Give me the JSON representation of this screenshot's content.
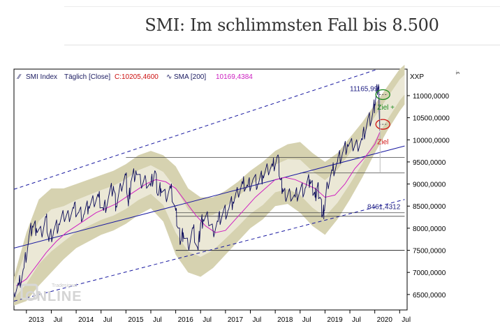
{
  "page": {
    "headline": "SMI: Im schlimmsten Fall bis 8.500"
  },
  "colors": {
    "price": "#0a0a5a",
    "sma": "#d020c0",
    "band": "#d6d2b0",
    "channel": "#1818a0",
    "level": "#444444",
    "target_plus": "#1c8a1c",
    "target": "#d01010",
    "background": "#ffffff"
  },
  "chart_data": {
    "type": "line",
    "legend_text": {
      "symbol": "SMI Index",
      "period": "Täglich [Close]",
      "close_label": "C:10205,4600",
      "sma_label": "SMA [200]",
      "sma_value": "10169,4384"
    },
    "axis_unit": "XXP",
    "x_ticks": [
      "2013",
      "Jul",
      "2014",
      "Jul",
      "2015",
      "Jul",
      "2016",
      "Jul",
      "2017",
      "Jul",
      "2018",
      "Jul",
      "2019",
      "Jul",
      "2020",
      "Jul"
    ],
    "y_ticks": [
      "11000,0000",
      "10500,0000",
      "10000,0000",
      "9500,0000",
      "9000,0000",
      "8500,0000",
      "8000,0000",
      "7500,0000",
      "7000,0000",
      "6500,0000"
    ],
    "y_tick_values": [
      11000,
      10500,
      10000,
      9500,
      9000,
      8500,
      8000,
      7500,
      7000,
      6500
    ],
    "ylim": [
      6150,
      11600
    ],
    "xlim": [
      2012.75,
      2020.65
    ],
    "annotations": {
      "high": "11165,99",
      "low": "8461,4312",
      "ziel_plus": "Ziel +",
      "ziel": "Ziel"
    },
    "series": [
      {
        "name": "SMI Index",
        "style": "price",
        "x": [
          2012.75,
          2012.85,
          2012.95,
          2013.05,
          2013.12,
          2013.2,
          2013.3,
          2013.4,
          2013.45,
          2013.55,
          2013.65,
          2013.75,
          2013.85,
          2013.95,
          2014.05,
          2014.15,
          2014.25,
          2014.35,
          2014.45,
          2014.55,
          2014.65,
          2014.75,
          2014.8,
          2014.9,
          2015.0,
          2015.05,
          2015.1,
          2015.2,
          2015.3,
          2015.4,
          2015.5,
          2015.58,
          2015.65,
          2015.7,
          2015.8,
          2015.9,
          2016.0,
          2016.05,
          2016.1,
          2016.15,
          2016.25,
          2016.35,
          2016.45,
          2016.5,
          2016.55,
          2016.65,
          2016.75,
          2016.85,
          2016.95,
          2017.05,
          2017.15,
          2017.25,
          2017.35,
          2017.45,
          2017.55,
          2017.65,
          2017.75,
          2017.85,
          2017.95,
          2018.05,
          2018.1,
          2018.15,
          2018.2,
          2018.3,
          2018.4,
          2018.5,
          2018.6,
          2018.7,
          2018.75,
          2018.8,
          2018.85,
          2018.9,
          2018.95,
          2018.98,
          2019.05,
          2019.15,
          2019.25,
          2019.35,
          2019.45,
          2019.55,
          2019.65,
          2019.75,
          2019.85,
          2019.95,
          2020.0,
          2020.05,
          2020.08,
          2020.1
        ],
        "y": [
          6550,
          6700,
          7100,
          7800,
          8050,
          8000,
          7900,
          8250,
          7700,
          7950,
          8100,
          8250,
          8300,
          8450,
          8350,
          8300,
          8500,
          8600,
          8700,
          8400,
          8700,
          8950,
          8500,
          8950,
          9200,
          8500,
          9050,
          9300,
          9000,
          9100,
          8950,
          9300,
          8750,
          8900,
          8700,
          8900,
          8400,
          8000,
          7700,
          7900,
          7600,
          8000,
          7500,
          8100,
          8200,
          8200,
          7950,
          8150,
          8350,
          8400,
          8600,
          8800,
          9000,
          8950,
          9100,
          9000,
          9200,
          9350,
          9400,
          9650,
          9100,
          8900,
          8700,
          8800,
          8700,
          8850,
          8900,
          9100,
          8900,
          8700,
          8950,
          8700,
          8300,
          8400,
          9000,
          9300,
          9500,
          9700,
          9900,
          9850,
          9900,
          10000,
          10400,
          10550,
          10800,
          11150,
          11166,
          10205
        ]
      },
      {
        "name": "SMA [200]",
        "style": "sma",
        "x": [
          2012.8,
          2013.0,
          2013.2,
          2013.4,
          2013.6,
          2013.8,
          2014.0,
          2014.2,
          2014.4,
          2014.6,
          2014.8,
          2015.0,
          2015.2,
          2015.4,
          2015.6,
          2015.8,
          2016.0,
          2016.2,
          2016.4,
          2016.6,
          2016.8,
          2017.0,
          2017.2,
          2017.4,
          2017.6,
          2017.8,
          2018.0,
          2018.2,
          2018.4,
          2018.6,
          2018.8,
          2019.0,
          2019.2,
          2019.4,
          2019.6,
          2019.8,
          2020.0,
          2020.1
        ],
        "y": [
          6700,
          6850,
          7150,
          7450,
          7700,
          7900,
          8050,
          8200,
          8350,
          8450,
          8550,
          8700,
          8850,
          9000,
          9100,
          9050,
          8900,
          8600,
          8300,
          8050,
          7900,
          7950,
          8200,
          8450,
          8700,
          8900,
          9100,
          9150,
          9100,
          9000,
          8900,
          8700,
          8750,
          9000,
          9350,
          9600,
          9900,
          10169
        ]
      }
    ],
    "channel_upper_line": {
      "x": [
        2012.75,
        2020.6
      ],
      "y": [
        8880,
        11800
      ]
    },
    "trendline_blue": {
      "x": [
        2012.75,
        2020.6
      ],
      "y": [
        7550,
        9860
      ]
    },
    "channel_lower_line": {
      "x": [
        2012.75,
        2020.6
      ],
      "y": [
        6350,
        8650
      ]
    },
    "bollinger_band": {
      "x": [
        2012.75,
        2013.0,
        2013.25,
        2013.5,
        2013.75,
        2014.0,
        2014.25,
        2014.5,
        2014.75,
        2015.0,
        2015.25,
        2015.5,
        2015.75,
        2016.0,
        2016.25,
        2016.5,
        2016.75,
        2017.0,
        2017.25,
        2017.5,
        2017.75,
        2018.0,
        2018.25,
        2018.5,
        2018.75,
        2019.0,
        2019.25,
        2019.5,
        2019.75,
        2020.0,
        2020.25,
        2020.5,
        2020.6
      ],
      "upper": [
        6900,
        7900,
        8650,
        8900,
        8900,
        9000,
        9100,
        9200,
        9300,
        9450,
        9650,
        9750,
        9650,
        9400,
        8900,
        8700,
        8700,
        8850,
        9050,
        9300,
        9500,
        9750,
        9900,
        9950,
        9700,
        9500,
        9700,
        10050,
        10400,
        10800,
        11200,
        11600,
        11700
      ],
      "lower": [
        6250,
        6350,
        6700,
        7000,
        7300,
        7550,
        7700,
        7850,
        7950,
        8100,
        8300,
        8450,
        8150,
        7400,
        7000,
        6900,
        7100,
        7400,
        7700,
        8000,
        8200,
        8500,
        8550,
        8350,
        8050,
        7850,
        8200,
        8650,
        9150,
        9700,
        10200,
        10650,
        10800
      ]
    },
    "horizontal_levels": [
      {
        "y": 9600,
        "x_start": 2015.0,
        "x_end": 2020.6
      },
      {
        "y": 9250,
        "x_start": 2018.5,
        "x_end": 2020.6
      },
      {
        "y": 8350,
        "x_start": 2016.0,
        "x_end": 2020.6
      },
      {
        "y": 8270,
        "x_start": 2016.0,
        "x_end": 2020.6
      },
      {
        "y": 7500,
        "x_start": 2016.0,
        "x_end": 2020.6
      }
    ]
  }
}
